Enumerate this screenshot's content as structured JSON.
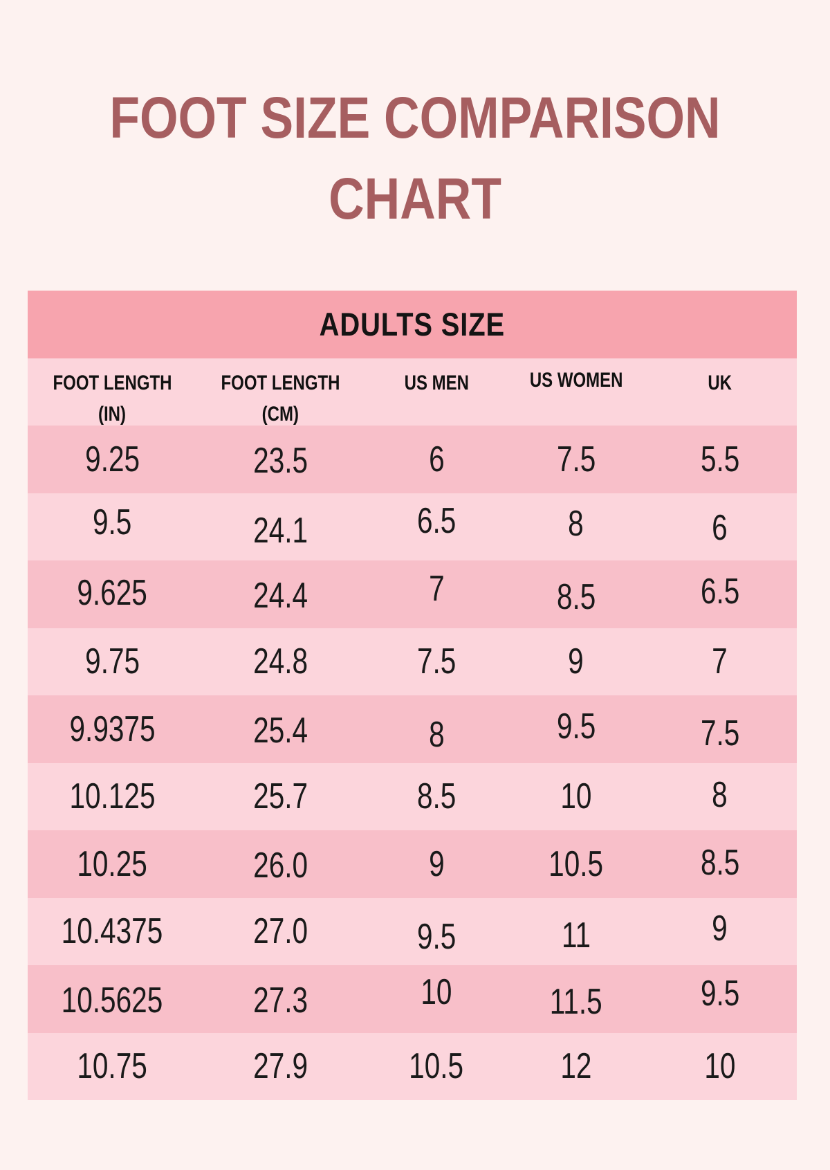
{
  "page": {
    "title_line1": "FOOT SIZE COMPARISON",
    "title_line2": "CHART"
  },
  "table": {
    "section_title": "ADULTS SIZE",
    "columns": [
      {
        "label": "FOOT LENGTH",
        "sub": "(IN)"
      },
      {
        "label": "FOOT LENGTH",
        "sub": "(CM)"
      },
      {
        "label": "US MEN",
        "sub": ""
      },
      {
        "label": "US WOMEN",
        "sub": ""
      },
      {
        "label": "UK",
        "sub": ""
      }
    ],
    "rows": [
      [
        "9.25",
        "23.5",
        "6",
        "7.5",
        "5.5"
      ],
      [
        "9.5",
        "24.1",
        "6.5",
        "8",
        "6"
      ],
      [
        "9.625",
        "24.4",
        "7",
        "8.5",
        "6.5"
      ],
      [
        "9.75",
        "24.8",
        "7.5",
        "9",
        "7"
      ],
      [
        "9.9375",
        "25.4",
        "8",
        "9.5",
        "7.5"
      ],
      [
        "10.125",
        "25.7",
        "8.5",
        "10",
        "8"
      ],
      [
        "10.25",
        "26.0",
        "9",
        "10.5",
        "8.5"
      ],
      [
        "10.4375",
        "27.0",
        "9.5",
        "11",
        "9"
      ],
      [
        "10.5625",
        "27.3",
        "10",
        "11.5",
        "9.5"
      ],
      [
        "10.75",
        "27.9",
        "10.5",
        "12",
        "10"
      ]
    ]
  },
  "colors": {
    "background": "#fdf2f0",
    "title_text": "#a65e60",
    "section_band": "#f7a4ae",
    "row_light": "#fcd5dc",
    "row_medium": "#f8bfc9",
    "table_text": "#1a1a1a"
  },
  "chart_data": {
    "type": "table",
    "title": "FOOT SIZE COMPARISON CHART",
    "section": "ADULTS SIZE",
    "columns": [
      "FOOT LENGTH (IN)",
      "FOOT LENGTH (CM)",
      "US MEN",
      "US WOMEN",
      "UK"
    ],
    "rows": [
      [
        9.25,
        23.5,
        6,
        7.5,
        5.5
      ],
      [
        9.5,
        24.1,
        6.5,
        8,
        6
      ],
      [
        9.625,
        24.4,
        7,
        8.5,
        6.5
      ],
      [
        9.75,
        24.8,
        7.5,
        9,
        7
      ],
      [
        9.9375,
        25.4,
        8,
        9.5,
        7.5
      ],
      [
        10.125,
        25.7,
        8.5,
        10,
        8
      ],
      [
        10.25,
        26.0,
        9,
        10.5,
        8.5
      ],
      [
        10.4375,
        27.0,
        9.5,
        11,
        9
      ],
      [
        10.5625,
        27.3,
        10,
        11.5,
        9.5
      ],
      [
        10.75,
        27.9,
        10.5,
        12,
        10
      ]
    ]
  }
}
